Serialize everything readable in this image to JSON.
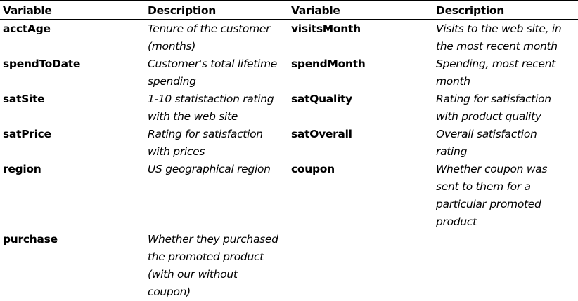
{
  "headers": [
    "Variable",
    "Description",
    "Variable",
    "Description"
  ],
  "rows": [
    {
      "left": {
        "name": "acctAge",
        "desc": [
          "Tenure of the customer",
          "(months)"
        ]
      },
      "right": {
        "name": "visitsMonth",
        "desc": [
          "Visits to the web site, in",
          "the most recent month"
        ]
      }
    },
    {
      "left": {
        "name": "spendToDate",
        "desc": [
          "Customer's total lifetime",
          "spending"
        ]
      },
      "right": {
        "name": "spendMonth",
        "desc": [
          "Spending, most recent",
          "month"
        ]
      }
    },
    {
      "left": {
        "name": "satSite",
        "desc": [
          "1-10 statistaction rating",
          "with the web site"
        ]
      },
      "right": {
        "name": "satQuality",
        "desc": [
          "Rating for satisfaction",
          "with product quality"
        ]
      }
    },
    {
      "left": {
        "name": "satPrice",
        "desc": [
          "Rating for satisfaction",
          "with prices"
        ]
      },
      "right": {
        "name": "satOverall",
        "desc": [
          "Overall satisfaction",
          "rating"
        ]
      }
    },
    {
      "left": {
        "name": "region",
        "desc": [
          "US geographical region"
        ]
      },
      "right": {
        "name": "coupon",
        "desc": [
          "Whether coupon was",
          "sent to them for a",
          "particular promoted",
          "product"
        ]
      }
    },
    {
      "left": {
        "name": "purchase",
        "desc": [
          "Whether they purchased",
          "the promoted product",
          "(with our without",
          "coupon)"
        ]
      },
      "right": {
        "name": "",
        "desc": []
      }
    }
  ]
}
